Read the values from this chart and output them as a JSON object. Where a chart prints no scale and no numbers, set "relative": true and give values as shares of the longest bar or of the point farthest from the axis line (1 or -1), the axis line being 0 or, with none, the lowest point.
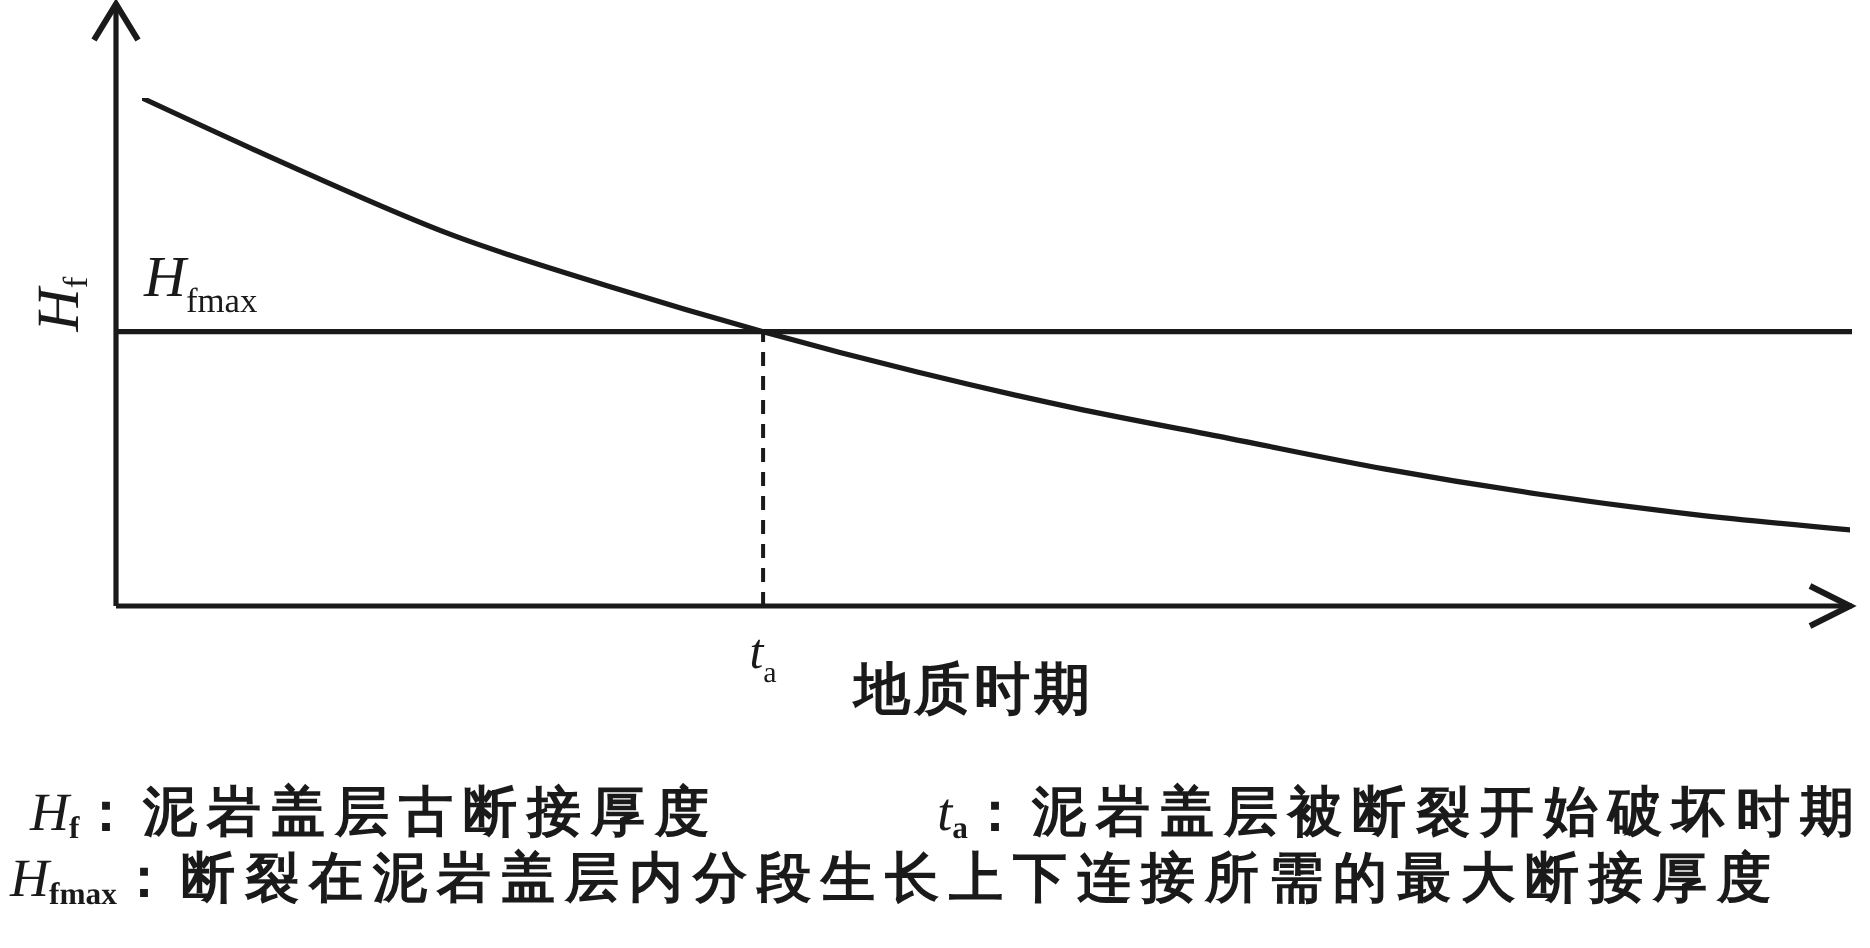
{
  "chart_data": {
    "type": "line",
    "relative": true,
    "xlabel": "地质时期",
    "ylabel": "H$_{f}$",
    "categories": [
      null,
      null,
      null,
      null,
      null,
      null,
      null,
      null,
      null,
      null,
      null,
      null
    ],
    "series": [
      {
        "color": "#1a1a1a",
        "values": [
          1,
          0.86,
          0.73,
          0.63,
          0.54,
          0.46,
          0.39,
          0.33,
          0.27,
          0.22,
          0.18,
          0.15
        ]
      }
    ],
    "ref_lines": [
      {
        "axis": "y",
        "value": 0.54,
        "label": "H$_{fmax}$",
        "color": "#1a1a1a"
      },
      {
        "axis": "x",
        "value": "t$_{a}$",
        "line_style": "dashed",
        "color": "#1a1a1a"
      }
    ],
    "marker": "none",
    "line_style": "solid",
    "annotations": [
      "H$_{f}$：泥岩盖层古断接厚度",
      "t$_{a}$：泥岩盖层被断裂开始破坏时期",
      "H$_{fmax}$：断裂在泥岩盖层内分段生长上下连接所需的最大断接厚度"
    ]
  }
}
